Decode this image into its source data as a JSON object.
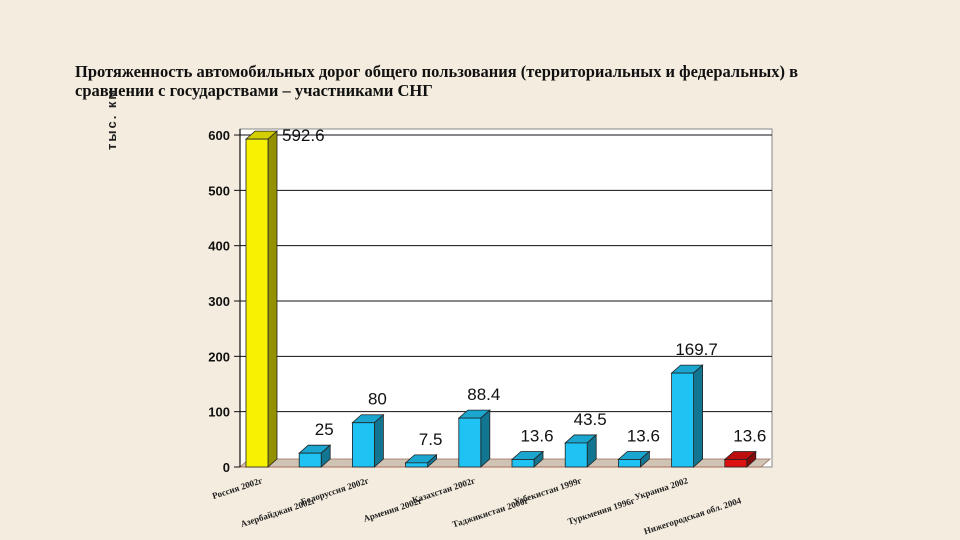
{
  "chart_data": {
    "type": "bar",
    "title": "Протяженность  автомобильных дорог общего пользования (территориальных и федеральных) в сравнении с государствами – участниками СНГ",
    "ylabel": "тыс. км",
    "xlabel": "",
    "ylim": [
      0,
      600
    ],
    "yticks": [
      "0",
      "100",
      "200",
      "300",
      "400",
      "500",
      "600"
    ],
    "grid": true,
    "categories": [
      "Россия 2002г",
      "Азербайджан 2002г",
      "Белоруссия 2002г",
      "Армения 2002г",
      "Казахстан 2002г",
      "Таджикистан 2000г",
      "Узбекистан 1999г",
      "Туркмения 1996г",
      "Украина 2002",
      "Нижегородская обл. 2004"
    ],
    "values": [
      592.6,
      25,
      80,
      7.5,
      88.4,
      13.6,
      43.5,
      13.6,
      169.7,
      13.6
    ],
    "value_labels": [
      "592.6",
      "25",
      "80",
      "7.5",
      "88.4",
      "13.6",
      "43.5",
      "13.6",
      "169.7",
      "13.6"
    ],
    "colors": [
      "#f7f200",
      "#1ec3f4",
      "#1ec3f4",
      "#1ec3f4",
      "#1ec3f4",
      "#1ec3f4",
      "#1ec3f4",
      "#1ec3f4",
      "#1ec3f4",
      "#dd1111"
    ]
  }
}
